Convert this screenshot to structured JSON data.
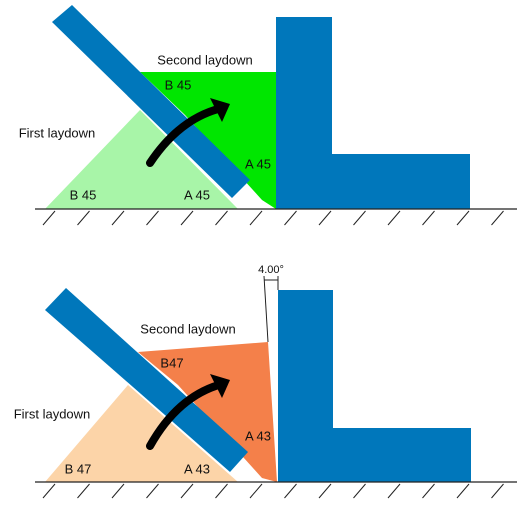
{
  "top": {
    "second_label": "Second laydown",
    "first_label": "First laydown",
    "second_b": "B 45",
    "second_a": "A 45",
    "first_b": "B 45",
    "first_a": "A 45"
  },
  "bottom": {
    "angle": "4.00°",
    "second_label": "Second laydown",
    "first_label": "First laydown",
    "second_b": "B47",
    "second_a": "A 43",
    "first_b": "B 47",
    "first_a": "A 43"
  }
}
